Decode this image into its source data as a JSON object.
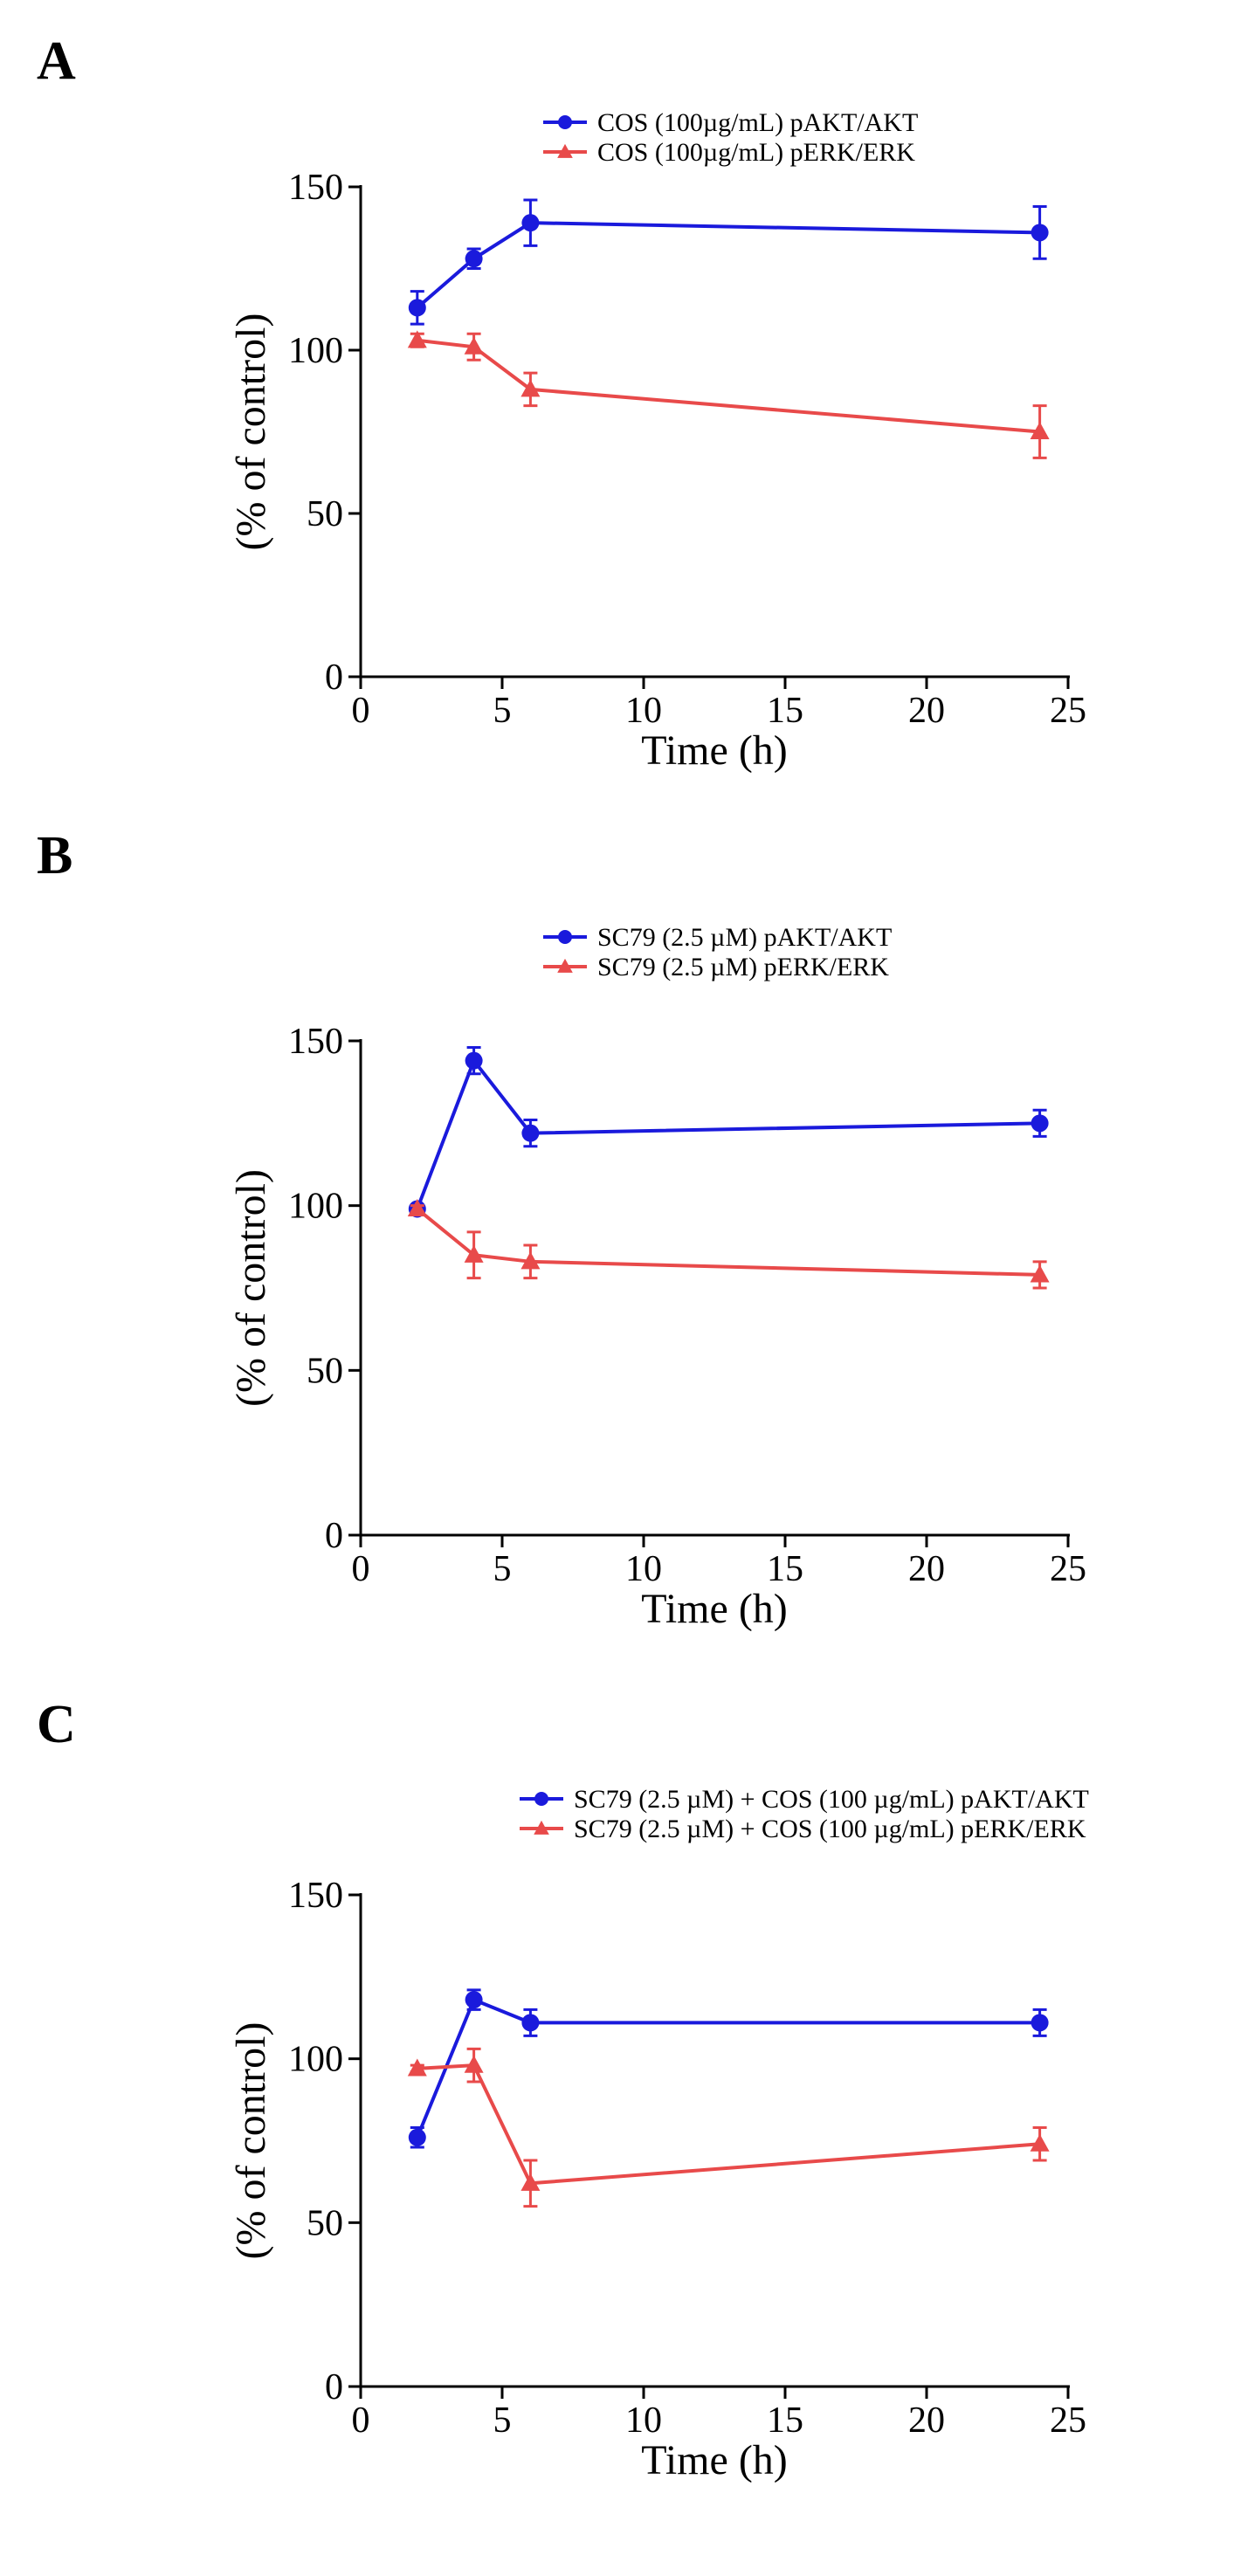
{
  "figure": {
    "colors": {
      "akt": "#1a1adc",
      "erk": "#e84a4a",
      "axis": "#000000"
    }
  },
  "chart_data": [
    {
      "panel": "A",
      "type": "line",
      "title": "",
      "xlabel": "Time (h)",
      "ylabel": "(% of control)",
      "xlim": [
        0,
        25
      ],
      "ylim": [
        0,
        150
      ],
      "xticks": [
        "0",
        "5",
        "10",
        "15",
        "20",
        "25"
      ],
      "yticks": [
        "0",
        "50",
        "100",
        "150"
      ],
      "grid": false,
      "legend_position": "top-right",
      "x": [
        2,
        4,
        6,
        24
      ],
      "series": [
        {
          "name": "COS (100µg/mL) pAKT/AKT",
          "marker": "circle",
          "values": [
            113,
            128,
            139,
            136
          ],
          "errors": [
            5,
            3,
            7,
            8
          ]
        },
        {
          "name": "COS (100µg/mL) pERK/ERK",
          "marker": "triangle",
          "values": [
            103,
            101,
            88,
            75
          ],
          "errors": [
            2,
            4,
            5,
            8
          ]
        }
      ]
    },
    {
      "panel": "B",
      "type": "line",
      "title": "",
      "xlabel": "Time (h)",
      "ylabel": "(% of control)",
      "xlim": [
        0,
        25
      ],
      "ylim": [
        0,
        150
      ],
      "xticks": [
        "0",
        "5",
        "10",
        "15",
        "20",
        "25"
      ],
      "yticks": [
        "0",
        "50",
        "100",
        "150"
      ],
      "grid": false,
      "legend_position": "top-right",
      "x": [
        2,
        4,
        6,
        24
      ],
      "series": [
        {
          "name": "SC79 (2.5 µM) pAKT/AKT",
          "marker": "circle",
          "values": [
            99,
            144,
            122,
            125
          ],
          "errors": [
            1,
            4,
            4,
            4
          ]
        },
        {
          "name": "SC79 (2.5 µM) pERK/ERK",
          "marker": "triangle",
          "values": [
            99,
            85,
            83,
            79
          ],
          "errors": [
            1,
            7,
            5,
            4
          ]
        }
      ]
    },
    {
      "panel": "C",
      "type": "line",
      "title": "",
      "xlabel": "Time (h)",
      "ylabel": "(% of control)",
      "xlim": [
        0,
        25
      ],
      "ylim": [
        0,
        150
      ],
      "xticks": [
        "0",
        "5",
        "10",
        "15",
        "20",
        "25"
      ],
      "yticks": [
        "0",
        "50",
        "100",
        "150"
      ],
      "grid": false,
      "legend_position": "top-right",
      "x": [
        2,
        4,
        6,
        24
      ],
      "series": [
        {
          "name": "SC79 (2.5 µM) + COS (100 µg/mL) pAKT/AKT",
          "marker": "circle",
          "values": [
            76,
            118,
            111,
            111
          ],
          "errors": [
            3,
            3,
            4,
            4
          ]
        },
        {
          "name": "SC79 (2.5 µM) + COS (100 µg/mL) pERK/ERK",
          "marker": "triangle",
          "values": [
            97,
            98,
            62,
            74
          ],
          "errors": [
            1,
            5,
            7,
            5
          ]
        }
      ]
    }
  ]
}
